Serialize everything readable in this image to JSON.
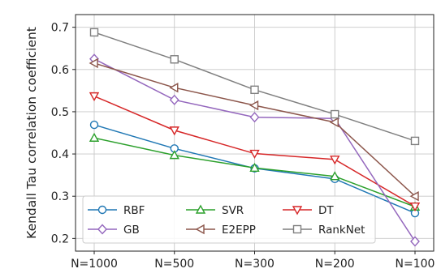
{
  "chart_data": {
    "type": "line",
    "title": "",
    "xlabel": "",
    "ylabel": "Kendall Tau correlation coefficient",
    "categories": [
      "N=1000",
      "N=500",
      "N=300",
      "N=200",
      "N=100"
    ],
    "ylim": [
      0.17,
      0.73
    ],
    "yticks": [
      0.2,
      0.3,
      0.4,
      0.5,
      0.6,
      0.7
    ],
    "ytick_labels": [
      "0.2",
      "0.3",
      "0.4",
      "0.5",
      "0.6",
      "0.7"
    ],
    "grid": true,
    "legend_position": "lower-left",
    "series": [
      {
        "name": "RBF",
        "color": "#1f77b4",
        "marker": "circle",
        "values": [
          0.469,
          0.413,
          0.366,
          0.341,
          0.26
        ]
      },
      {
        "name": "SVR",
        "color": "#2ca02c",
        "marker": "triangle-up",
        "values": [
          0.438,
          0.397,
          0.367,
          0.347,
          0.275
        ]
      },
      {
        "name": "DT",
        "color": "#d62728",
        "marker": "triangle-down",
        "values": [
          0.537,
          0.456,
          0.401,
          0.387,
          0.276
        ]
      },
      {
        "name": "GB",
        "color": "#9467bd",
        "marker": "diamond",
        "values": [
          0.625,
          0.528,
          0.487,
          0.484,
          0.193
        ]
      },
      {
        "name": "E2EPP",
        "color": "#8c564b",
        "marker": "triangle-left",
        "values": [
          0.615,
          0.557,
          0.515,
          0.475,
          0.3
        ]
      },
      {
        "name": "RankNet",
        "color": "#7f7f7f",
        "marker": "square",
        "values": [
          0.688,
          0.624,
          0.552,
          0.494,
          0.431
        ]
      }
    ]
  }
}
